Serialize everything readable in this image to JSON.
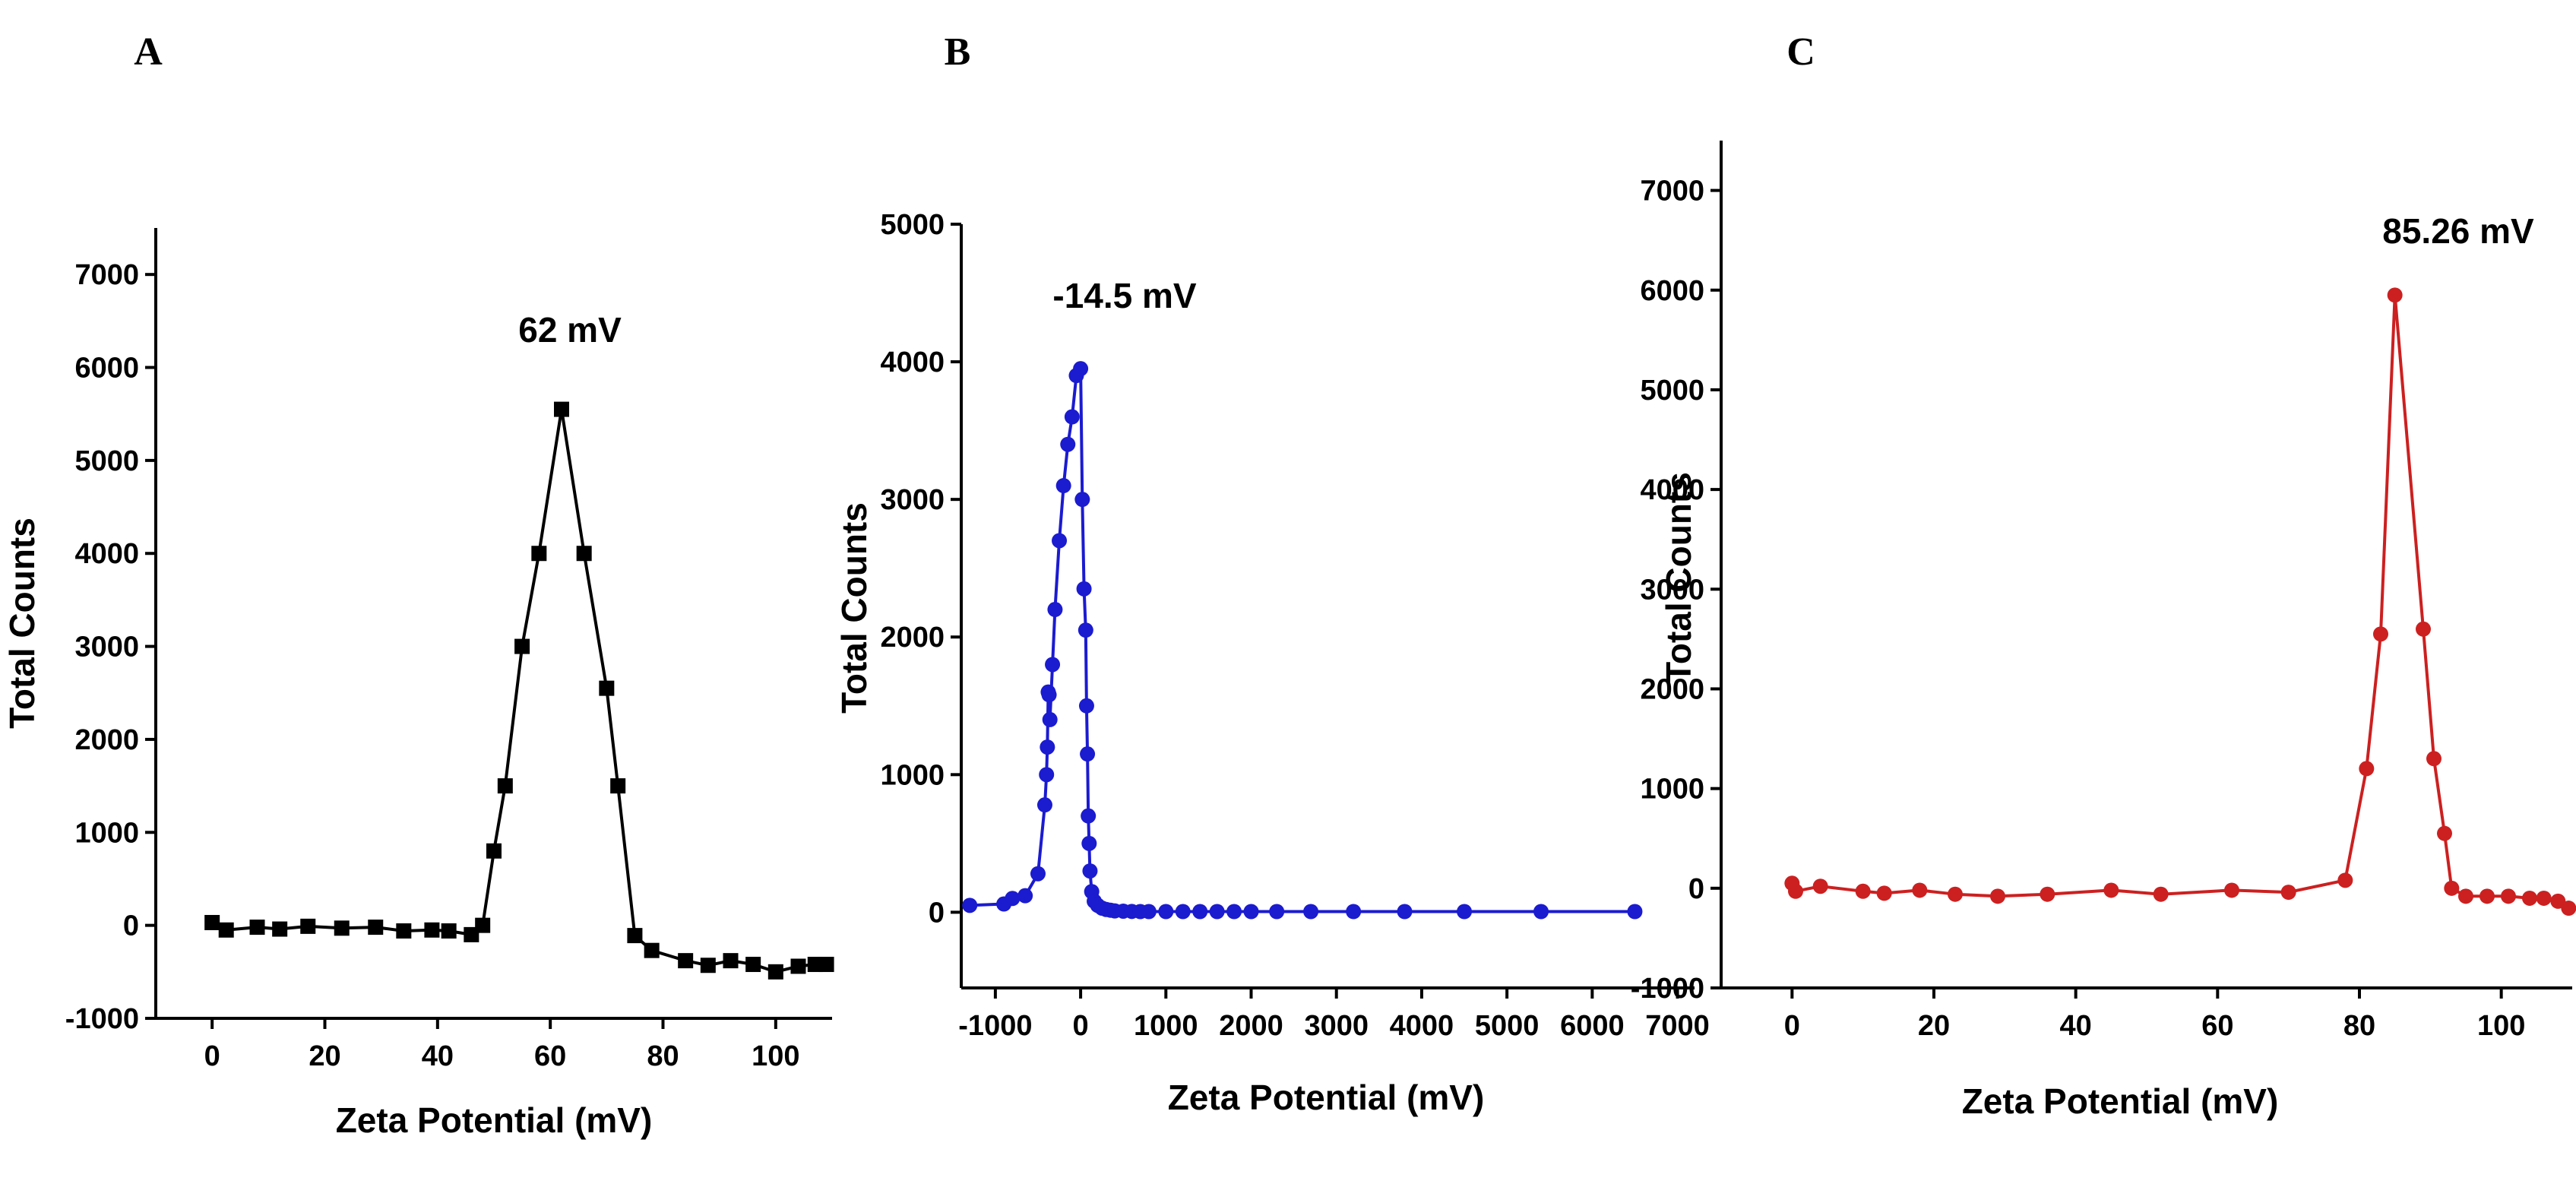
{
  "chart_data": [
    {
      "type": "line",
      "panel": "A",
      "annotation": "62 mV",
      "xlabel": "Zeta Potential (mV)",
      "ylabel": "Total Counts",
      "xlim": [
        -10,
        110
      ],
      "ylim": [
        -1000,
        7500
      ],
      "xticks": [
        0,
        20,
        40,
        60,
        80,
        100
      ],
      "yticks": [
        -1000,
        0,
        1000,
        2000,
        3000,
        4000,
        5000,
        6000,
        7000
      ],
      "color": "#000000",
      "marker": "square",
      "x": [
        0,
        2.5,
        8,
        12,
        17,
        23,
        29,
        34,
        39,
        42,
        46,
        48,
        50,
        52,
        55,
        58,
        62,
        66,
        70,
        72,
        75,
        78,
        84,
        88,
        92,
        96,
        100,
        104,
        107,
        109
      ],
      "y": [
        30,
        -50,
        -20,
        -40,
        -10,
        -30,
        -20,
        -60,
        -50,
        -60,
        -100,
        0,
        800,
        1500,
        3000,
        4000,
        5550,
        4000,
        2550,
        1500,
        -110,
        -270,
        -380,
        -430,
        -380,
        -420,
        -500,
        -440,
        -420,
        -420
      ]
    },
    {
      "type": "line",
      "panel": "B",
      "annotation": "-14.5 mV",
      "xlabel": "Zeta Potential (mV)",
      "ylabel": "Total Counts",
      "xlim": [
        -1400,
        7200
      ],
      "ylim": [
        -550,
        5000
      ],
      "xticks": [
        -1000,
        0,
        1000,
        2000,
        3000,
        4000,
        5000,
        6000,
        7000
      ],
      "yticks": [
        0,
        1000,
        2000,
        3000,
        4000,
        5000
      ],
      "color": "#1b1bd0",
      "marker": "circle",
      "x": [
        -1300,
        -900,
        -800,
        -650,
        -500,
        -420,
        -400,
        -390,
        -380,
        -370,
        -360,
        -330,
        -300,
        -250,
        -200,
        -150,
        -100,
        -50,
        0,
        20,
        40,
        60,
        70,
        80,
        90,
        100,
        110,
        130,
        160,
        200,
        250,
        300,
        350,
        400,
        500,
        600,
        700,
        800,
        1000,
        1200,
        1400,
        1600,
        1800,
        2000,
        2300,
        2700,
        3200,
        3800,
        4500,
        5400,
        6500
      ],
      "y": [
        50,
        60,
        100,
        120,
        280,
        780,
        1000,
        1200,
        1600,
        1580,
        1400,
        1800,
        2200,
        2700,
        3100,
        3400,
        3600,
        3900,
        3950,
        3000,
        2350,
        2050,
        1500,
        1150,
        700,
        500,
        300,
        150,
        80,
        50,
        30,
        20,
        15,
        10,
        8,
        6,
        5,
        5,
        5,
        5,
        5,
        5,
        5,
        5,
        5,
        5,
        5,
        5,
        5,
        5,
        5
      ]
    },
    {
      "type": "line",
      "panel": "C",
      "annotation": "85.26 mV",
      "xlabel": "Zeta Potential (mV)",
      "ylabel": "Total Counts",
      "xlim": [
        -10,
        110
      ],
      "ylim": [
        -1000,
        7500
      ],
      "xticks": [
        0,
        20,
        40,
        60,
        80,
        100
      ],
      "yticks": [
        -1000,
        0,
        1000,
        2000,
        3000,
        4000,
        5000,
        6000,
        7000
      ],
      "color": "#cc2020",
      "marker": "circle",
      "x": [
        0,
        0.5,
        4,
        10,
        13,
        18,
        23,
        29,
        36,
        45,
        52,
        62,
        70,
        78,
        81,
        83,
        85,
        89,
        90.5,
        92,
        93,
        95,
        98,
        101,
        104,
        106,
        108,
        109.5
      ],
      "y": [
        50,
        -30,
        20,
        -30,
        -50,
        -20,
        -60,
        -80,
        -60,
        -20,
        -60,
        -20,
        -40,
        80,
        1200,
        2550,
        5950,
        2600,
        1300,
        550,
        0,
        -80,
        -80,
        -80,
        -100,
        -100,
        -130,
        -200
      ]
    }
  ]
}
